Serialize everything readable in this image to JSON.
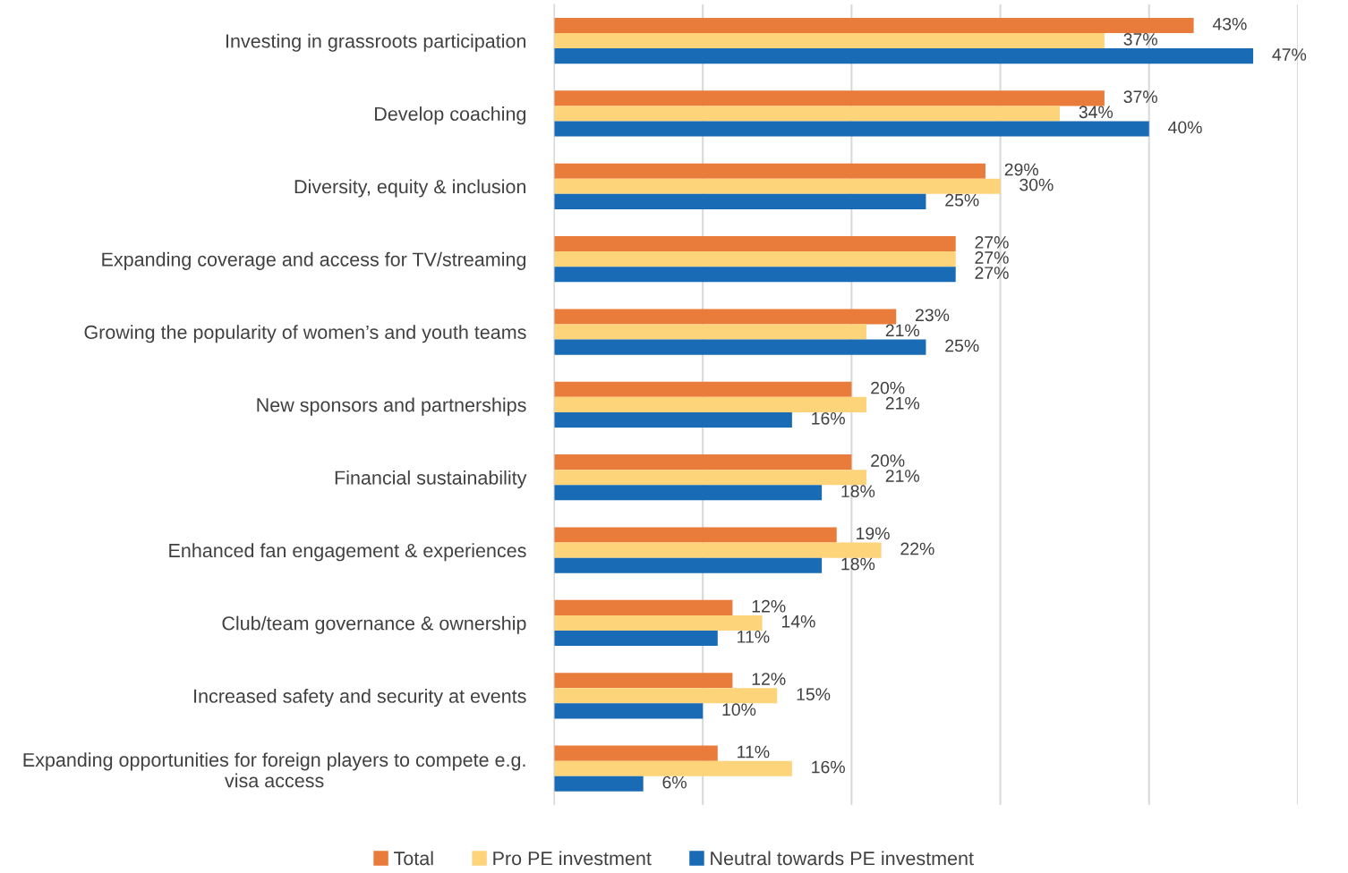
{
  "chart_data": {
    "type": "bar",
    "orientation": "horizontal",
    "categories": [
      "Investing in grassroots participation",
      "Develop coaching",
      "Diversity, equity & inclusion",
      "Expanding coverage and access for TV/streaming",
      "Growing the popularity of women’s and youth teams",
      "New sponsors and partnerships",
      "Financial sustainability",
      "Enhanced fan engagement & experiences",
      "Club/team governance & ownership",
      "Increased safety and security at events",
      "Expanding opportunities for foreign players to compete e.g.\nvisa access"
    ],
    "series": [
      {
        "name": "Total",
        "color": "#e97b3b",
        "values": [
          43,
          37,
          29,
          27,
          23,
          20,
          20,
          19,
          12,
          12,
          11
        ],
        "value_labels": [
          "43%",
          "37%",
          "29%",
          "27%",
          "23%",
          "20%",
          "20%",
          "19%",
          "12%",
          "12%",
          "11%"
        ]
      },
      {
        "name": "Pro PE investment",
        "color": "#fdd47a",
        "values": [
          37,
          34,
          30,
          27,
          21,
          21,
          21,
          22,
          14,
          15,
          16
        ],
        "value_labels": [
          "37%",
          "34%",
          "30%",
          "27%",
          "21%",
          "21%",
          "21%",
          "22%",
          "14%",
          "15%",
          "16%"
        ]
      },
      {
        "name": "Neutral towards PE investment",
        "color": "#1a6bb5",
        "values": [
          47,
          40,
          25,
          27,
          25,
          16,
          18,
          18,
          11,
          10,
          6
        ],
        "value_labels": [
          "47%",
          "40%",
          "25%",
          "27%",
          "25%",
          "16%",
          "18%",
          "18%",
          "11%",
          "10%",
          "6%"
        ]
      }
    ],
    "xlim": [
      0,
      50
    ],
    "xticks": [
      {
        "value": 0,
        "label": null
      },
      {
        "value": 10,
        "label": null
      },
      {
        "value": 20,
        "label": null
      },
      {
        "value": 30,
        "label": null
      },
      {
        "value": 40,
        "label": null
      },
      {
        "value": 50,
        "label": null
      }
    ],
    "tick_labels": "y",
    "grid": "x",
    "legend": "bottom"
  }
}
